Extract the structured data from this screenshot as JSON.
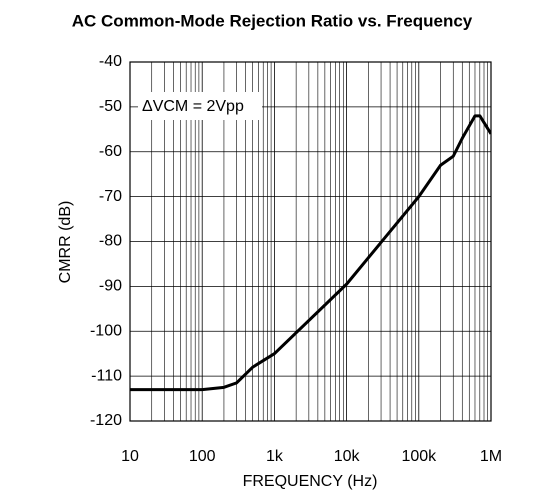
{
  "chart_data": {
    "type": "line",
    "title": "AC Common-Mode Rejection Ratio vs. Frequency",
    "xlabel": "FREQUENCY (Hz)",
    "ylabel": "CMRR (dB)",
    "annotation": "ΔVCM = 2Vpp",
    "x": [
      10,
      100,
      200,
      300,
      500,
      1000,
      10000,
      100000,
      200000,
      300000,
      400000,
      600000,
      700000,
      1000000
    ],
    "series": [
      {
        "name": "CMRR",
        "color": "#000000",
        "values": [
          -113,
          -113,
          -112.5,
          -111.5,
          -108,
          -105,
          -89.5,
          -70,
          -63,
          -61,
          -57,
          -52,
          -52,
          -56
        ]
      }
    ],
    "xlim": [
      10,
      1000000
    ],
    "ylim": [
      -120,
      -40
    ],
    "xlog": true,
    "grid": true,
    "xticks": [
      10,
      100,
      {
        "value": 1000,
        "label": "1k"
      },
      {
        "value": 10000,
        "label": "10k"
      },
      {
        "value": 100000,
        "label": "100k"
      },
      {
        "value": 1000000,
        "label": "1M"
      }
    ],
    "yticks": [
      -120,
      -110,
      -100,
      -90,
      -80,
      -70,
      -60,
      -50,
      -40
    ]
  }
}
